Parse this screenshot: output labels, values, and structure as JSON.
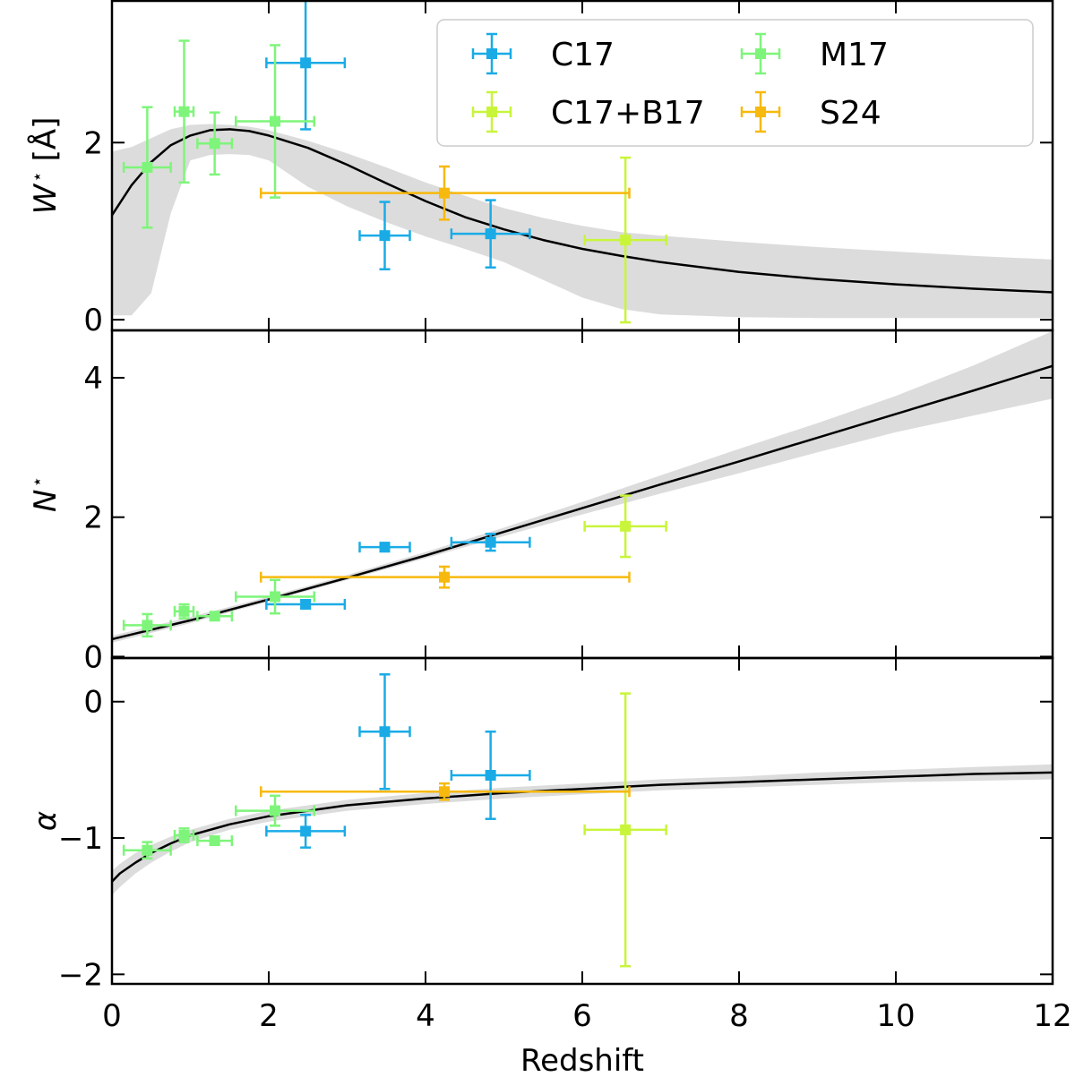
{
  "chart_data": {
    "type": "scatter",
    "xlabel": "Redshift",
    "xlim": [
      0,
      12
    ],
    "x_ticks": [
      0,
      2,
      4,
      6,
      8,
      10,
      12
    ],
    "x_tick_labels": [
      "0",
      "2",
      "4",
      "6",
      "8",
      "10",
      "12"
    ],
    "legend": {
      "placement": "top-right",
      "columns": 2,
      "entries": [
        {
          "key": "C17",
          "label": "C17"
        },
        {
          "key": "C17B17",
          "label": "C17+B17"
        },
        {
          "key": "M17",
          "label": "M17"
        },
        {
          "key": "S24",
          "label": "S24"
        }
      ]
    },
    "series_colors": {
      "C17": "#1aabe6",
      "M17": "#7ef57a",
      "C17B17": "#c8f53a",
      "S24": "#f7b90d",
      "model": "#000000",
      "band": "#dcdcdc"
    },
    "panels": [
      {
        "id": "W",
        "ylabel_main": "W",
        "ylabel_sup": "⋆",
        "ylabel_unit": "[Å]",
        "ylim": [
          -0.12,
          3.6
        ],
        "y_ticks": [
          0,
          2
        ],
        "y_tick_labels": [
          "0",
          "2"
        ],
        "points": [
          {
            "series": "C17",
            "x": 2.47,
            "xerr": 0.5,
            "y": 2.9,
            "yerr": 0.75
          },
          {
            "series": "C17",
            "x": 3.48,
            "xerr": 0.32,
            "y": 0.95,
            "yerr": 0.38
          },
          {
            "series": "C17",
            "x": 4.83,
            "xerr": 0.5,
            "y": 0.97,
            "yerr": 0.38
          },
          {
            "series": "M17",
            "x": 0.45,
            "xerr": 0.3,
            "y": 1.72,
            "yerr": 0.68
          },
          {
            "series": "M17",
            "x": 0.92,
            "xerr": 0.12,
            "y": 2.35,
            "yerr": 0.8
          },
          {
            "series": "M17",
            "x": 1.31,
            "xerr": 0.22,
            "y": 1.99,
            "yerr": 0.35
          },
          {
            "series": "M17",
            "x": 2.08,
            "xerr": 0.5,
            "y": 2.24,
            "yerr": 0.86
          },
          {
            "series": "C17B17",
            "x": 6.55,
            "xerr": 0.52,
            "y": 0.9,
            "yerr": 0.93
          },
          {
            "series": "S24",
            "x": 4.24,
            "xerr1": 2.34,
            "xerr2": 2.36,
            "y": 1.43,
            "yerr": 0.3
          }
        ],
        "model": {
          "x": [
            0,
            0.25,
            0.5,
            0.75,
            1.0,
            1.25,
            1.5,
            1.75,
            2.0,
            2.5,
            3.0,
            3.5,
            4.0,
            4.5,
            5.0,
            5.5,
            6.0,
            6.5,
            7.0,
            8.0,
            9.0,
            10.0,
            11.0,
            12.0
          ],
          "y": [
            1.18,
            1.52,
            1.78,
            1.97,
            2.08,
            2.14,
            2.15,
            2.13,
            2.08,
            1.94,
            1.75,
            1.54,
            1.34,
            1.16,
            1.02,
            0.9,
            0.8,
            0.72,
            0.65,
            0.54,
            0.46,
            0.4,
            0.35,
            0.31
          ],
          "band_low": [
            0.05,
            0.05,
            0.3,
            1.2,
            1.8,
            1.86,
            1.87,
            1.86,
            1.8,
            1.5,
            1.28,
            1.1,
            0.94,
            0.8,
            0.65,
            0.45,
            0.25,
            0.12,
            0.06,
            0.03,
            0.02,
            0.02,
            0.02,
            0.02
          ],
          "band_high": [
            1.9,
            1.95,
            2.05,
            2.15,
            2.2,
            2.21,
            2.2,
            2.18,
            2.14,
            2.02,
            1.88,
            1.72,
            1.55,
            1.4,
            1.26,
            1.15,
            1.06,
            0.99,
            0.95,
            0.88,
            0.82,
            0.77,
            0.72,
            0.68
          ]
        }
      },
      {
        "id": "N",
        "ylabel_main": "N",
        "ylabel_sup": "⋆",
        "ylabel_unit": "",
        "ylim": [
          -0.02,
          4.68
        ],
        "y_ticks": [
          0,
          2,
          4
        ],
        "y_tick_labels": [
          "0",
          "2",
          "4"
        ],
        "points": [
          {
            "series": "C17",
            "x": 2.47,
            "xerr": 0.5,
            "y": 0.75,
            "yerr": 0.06
          },
          {
            "series": "C17",
            "x": 3.48,
            "xerr": 0.32,
            "y": 1.57,
            "yerr": 0.06
          },
          {
            "series": "C17",
            "x": 4.83,
            "xerr": 0.5,
            "y": 1.64,
            "yerr": 0.12
          },
          {
            "series": "M17",
            "x": 0.45,
            "xerr": 0.3,
            "y": 0.45,
            "yerr": 0.16
          },
          {
            "series": "M17",
            "x": 0.92,
            "xerr": 0.12,
            "y": 0.65,
            "yerr": 0.1
          },
          {
            "series": "M17",
            "x": 1.31,
            "xerr": 0.22,
            "y": 0.58,
            "yerr": 0.05
          },
          {
            "series": "M17",
            "x": 2.08,
            "xerr": 0.5,
            "y": 0.86,
            "yerr": 0.24
          },
          {
            "series": "C17B17",
            "x": 6.55,
            "xerr": 0.52,
            "y": 1.87,
            "yerr": 0.44
          },
          {
            "series": "S24",
            "x": 4.24,
            "xerr1": 2.34,
            "xerr2": 2.36,
            "y": 1.14,
            "yerr": 0.15
          }
        ],
        "model": {
          "x": [
            0,
            1,
            2,
            3,
            4,
            5,
            6,
            7,
            8,
            9,
            10,
            11,
            12
          ],
          "y": [
            0.25,
            0.52,
            0.82,
            1.13,
            1.45,
            1.79,
            2.13,
            2.47,
            2.8,
            3.14,
            3.48,
            3.82,
            4.17
          ],
          "band_low": [
            0.2,
            0.48,
            0.79,
            1.1,
            1.41,
            1.73,
            2.04,
            2.34,
            2.63,
            2.93,
            3.22,
            3.46,
            3.7
          ],
          "band_high": [
            0.3,
            0.57,
            0.86,
            1.17,
            1.5,
            1.85,
            2.22,
            2.6,
            2.98,
            3.35,
            3.74,
            4.18,
            4.67
          ]
        }
      },
      {
        "id": "alpha",
        "ylabel_main": "α",
        "ylabel_sup": "",
        "ylabel_unit": "",
        "ylim": [
          -2.07,
          0.32
        ],
        "y_ticks": [
          -2,
          -1,
          0
        ],
        "y_tick_labels": [
          "−2",
          "−1",
          "0"
        ],
        "points": [
          {
            "series": "C17",
            "x": 2.47,
            "xerr": 0.5,
            "y": -0.95,
            "yerr": 0.12
          },
          {
            "series": "C17",
            "x": 3.48,
            "xerr": 0.32,
            "y": -0.22,
            "yerr": 0.42
          },
          {
            "series": "C17",
            "x": 4.83,
            "xerr": 0.5,
            "y": -0.54,
            "yerr": 0.32
          },
          {
            "series": "M17",
            "x": 0.45,
            "xerr": 0.3,
            "y": -1.09,
            "yerr": 0.06
          },
          {
            "series": "M17",
            "x": 0.92,
            "xerr": 0.12,
            "y": -0.98,
            "yerr": 0.05
          },
          {
            "series": "M17",
            "x": 1.31,
            "xerr": 0.22,
            "y": -1.02,
            "yerr": 0.03
          },
          {
            "series": "M17",
            "x": 2.08,
            "xerr": 0.5,
            "y": -0.8,
            "yerr": 0.11
          },
          {
            "series": "C17B17",
            "x": 6.55,
            "xerr": 0.52,
            "y": -0.94,
            "yerr": 1.0
          },
          {
            "series": "S24",
            "x": 4.24,
            "xerr1": 2.34,
            "xerr2": 2.36,
            "y": -0.66,
            "yerr": 0.06
          }
        ],
        "model": {
          "x": [
            0,
            0.1,
            0.3,
            0.5,
            0.75,
            1.0,
            1.5,
            2.0,
            2.5,
            3.0,
            4.0,
            5.0,
            6.0,
            7.0,
            8.0,
            9.0,
            10.0,
            11.0,
            12.0
          ],
          "y": [
            -1.32,
            -1.26,
            -1.18,
            -1.11,
            -1.04,
            -0.98,
            -0.9,
            -0.84,
            -0.8,
            -0.76,
            -0.71,
            -0.67,
            -0.64,
            -0.61,
            -0.59,
            -0.57,
            -0.55,
            -0.53,
            -0.52
          ],
          "band_low": [
            -1.42,
            -1.36,
            -1.26,
            -1.18,
            -1.1,
            -1.03,
            -0.94,
            -0.88,
            -0.84,
            -0.8,
            -0.75,
            -0.71,
            -0.68,
            -0.65,
            -0.63,
            -0.61,
            -0.59,
            -0.58,
            -0.57
          ],
          "band_high": [
            -1.24,
            -1.19,
            -1.11,
            -1.05,
            -0.99,
            -0.94,
            -0.86,
            -0.8,
            -0.76,
            -0.72,
            -0.67,
            -0.63,
            -0.6,
            -0.57,
            -0.55,
            -0.52,
            -0.5,
            -0.48,
            -0.46
          ]
        }
      }
    ]
  }
}
